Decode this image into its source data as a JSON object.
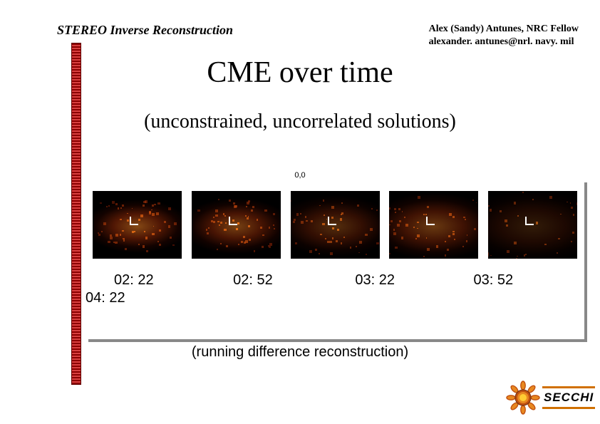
{
  "header": {
    "left": "STEREO Inverse Reconstruction",
    "author_line1": "Alex (Sandy) Antunes, NRC Fellow",
    "author_line2": "alexander. antunes@nrl. navy. mil"
  },
  "title": "CME over time",
  "subtitle": "(unconstrained, uncorrelated solutions)",
  "axis_label": "0,0",
  "times": {
    "t1": "02: 22",
    "t2": "02: 52",
    "t3": "03: 22",
    "t4": "03: 52",
    "t5": "04: 22"
  },
  "caption": "(running difference reconstruction)",
  "logo": {
    "text": "SECCHI",
    "sun_inner": "#ffcc33",
    "sun_mid": "#e88820",
    "sun_outer": "#c05010",
    "border_color": "#d07000"
  },
  "colors": {
    "background": "#ffffff",
    "shadow": "#888888",
    "sidebar_dark": "#8b0000",
    "sidebar_light": "#d94040",
    "panel_bg": "#000000",
    "blob_bright": "#ff5010",
    "blob_mid": "#cc3000",
    "blob_dark": "#701000",
    "text": "#000000"
  },
  "panels": [
    {
      "density": 0.95,
      "spread": 1.0
    },
    {
      "density": 0.85,
      "spread": 1.05
    },
    {
      "density": 0.6,
      "spread": 1.15
    },
    {
      "density": 0.75,
      "spread": 1.25
    },
    {
      "density": 0.35,
      "spread": 1.35
    }
  ]
}
